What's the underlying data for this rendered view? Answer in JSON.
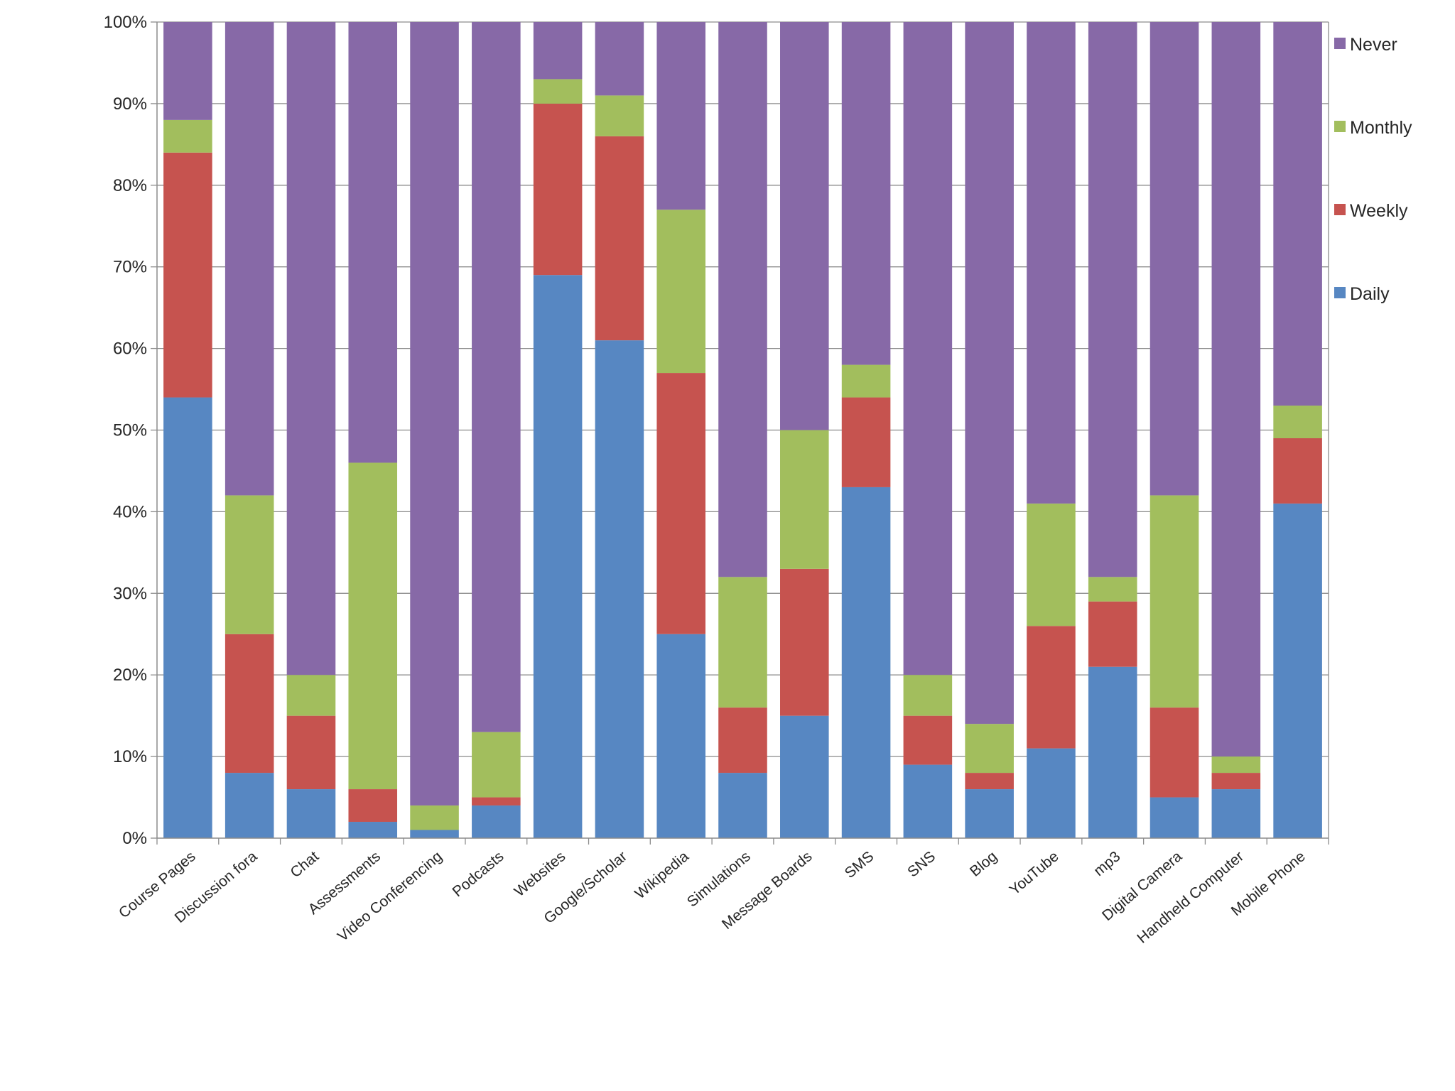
{
  "chart_data": {
    "type": "bar",
    "stacked": true,
    "percent_stacked": true,
    "title": "",
    "xlabel": "",
    "ylabel": "",
    "ylim": [
      0,
      100
    ],
    "y_ticks": [
      "0%",
      "10%",
      "20%",
      "30%",
      "40%",
      "50%",
      "60%",
      "70%",
      "80%",
      "90%",
      "100%"
    ],
    "grid": true,
    "legend_position": "right",
    "categories": [
      "Course Pages",
      "Discussion fora",
      "Chat",
      "Assessments",
      "Video Conferencing",
      "Podcasts",
      "Websites",
      "Google/Scholar",
      "Wikipedia",
      "Simulations",
      "Message Boards",
      "SMS",
      "SNS",
      "Blog",
      "YouTube",
      "mp3",
      "Digital Camera",
      "Handheld Computer",
      "Mobile Phone"
    ],
    "series": [
      {
        "name": "Daily",
        "color": "#5787C2",
        "values": [
          54,
          8,
          6,
          2,
          1,
          4,
          69,
          61,
          25,
          8,
          15,
          43,
          9,
          6,
          11,
          21,
          5,
          6,
          41
        ]
      },
      {
        "name": "Weekly",
        "color": "#C6534F",
        "values": [
          30,
          17,
          9,
          4,
          0,
          1,
          21,
          25,
          32,
          8,
          18,
          11,
          6,
          2,
          15,
          8,
          11,
          2,
          8
        ]
      },
      {
        "name": "Monthly",
        "color": "#A2BE5D",
        "values": [
          4,
          17,
          5,
          40,
          3,
          8,
          3,
          5,
          20,
          16,
          17,
          4,
          5,
          6,
          15,
          3,
          26,
          2,
          4
        ]
      },
      {
        "name": "Never",
        "color": "#8769A7",
        "values": [
          12,
          58,
          80,
          54,
          96,
          87,
          7,
          9,
          23,
          68,
          50,
          42,
          80,
          86,
          59,
          68,
          58,
          90,
          47
        ]
      }
    ],
    "legend_order": [
      "Never",
      "Monthly",
      "Weekly",
      "Daily"
    ]
  }
}
